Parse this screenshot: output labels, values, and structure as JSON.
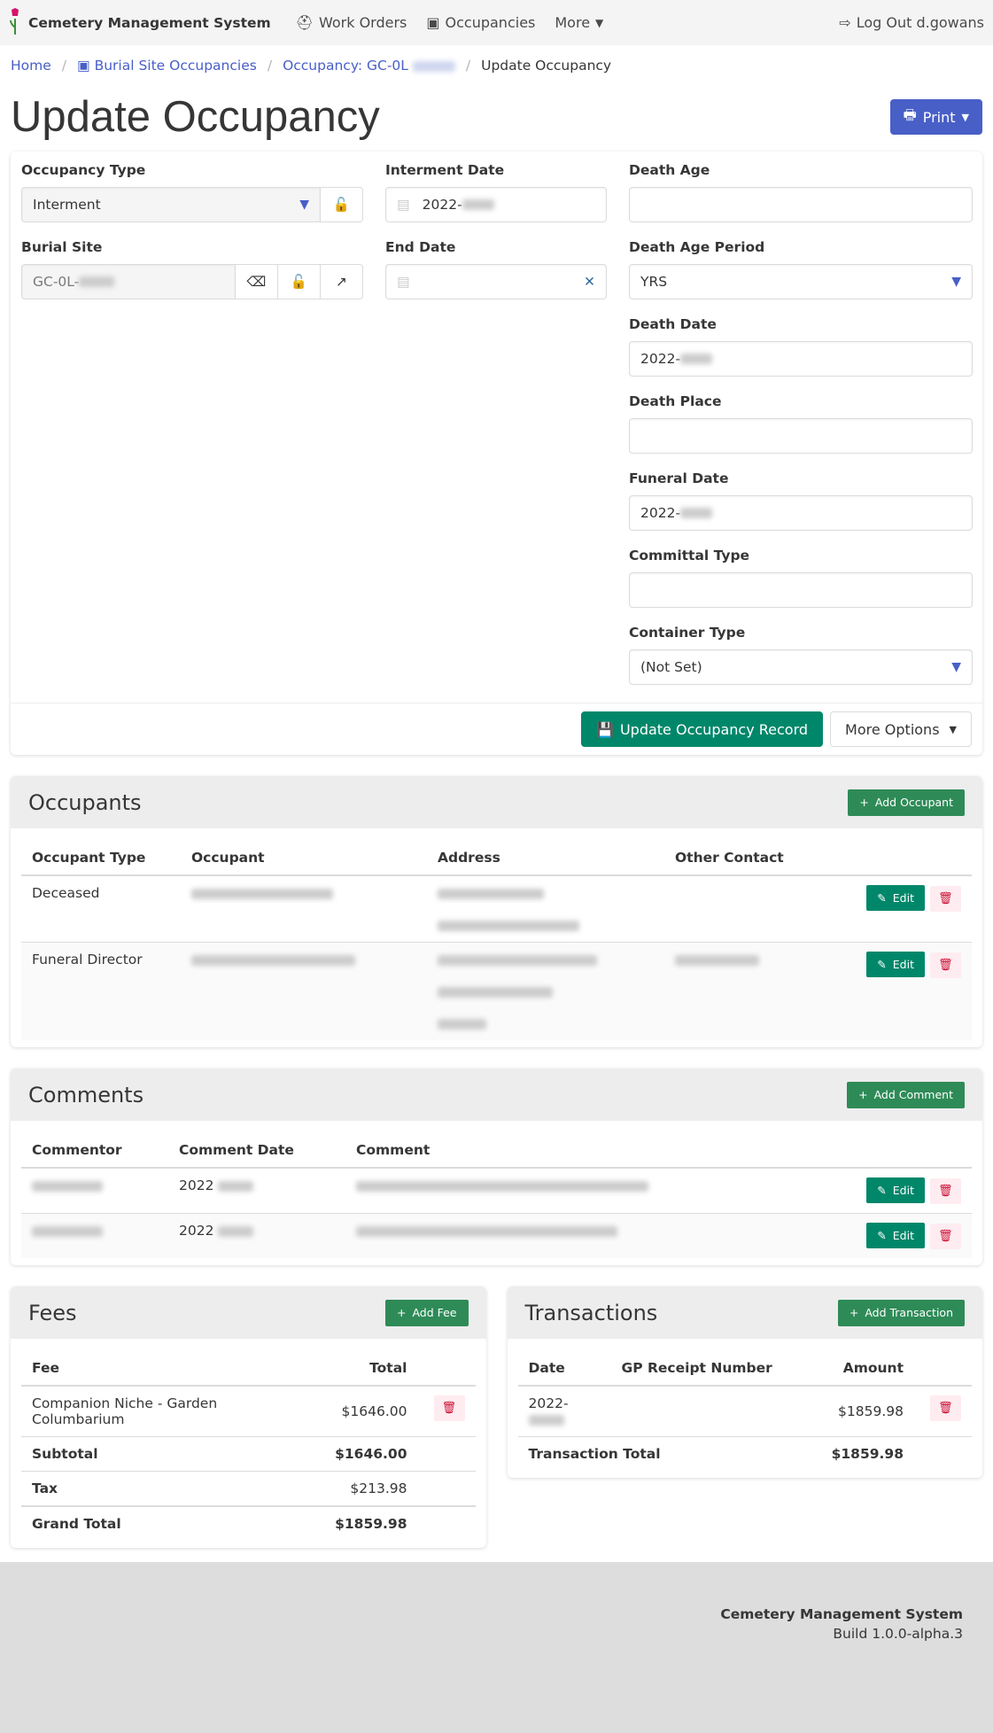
{
  "nav": {
    "brand": "Cemetery Management System",
    "work_orders": "Work Orders",
    "occupancies": "Occupancies",
    "more": "More",
    "logout": "Log Out d.gowans"
  },
  "breadcrumb": {
    "home": "Home",
    "burial_site_occupancies": "Burial Site Occupancies",
    "occupancy": "Occupancy: GC-0L",
    "current": "Update Occupancy"
  },
  "page": {
    "title": "Update Occupancy",
    "print": "Print"
  },
  "form": {
    "occupancy_type": {
      "label": "Occupancy Type",
      "value": "Interment"
    },
    "burial_site": {
      "label": "Burial Site",
      "value": "GC-0L-"
    },
    "interment_date": {
      "label": "Interment Date",
      "value": "2022-"
    },
    "end_date": {
      "label": "End Date",
      "value": ""
    },
    "death_age": {
      "label": "Death Age",
      "value": ""
    },
    "death_age_period": {
      "label": "Death Age Period",
      "value": "YRS"
    },
    "death_date": {
      "label": "Death Date",
      "value": "2022-"
    },
    "death_place": {
      "label": "Death Place",
      "value": ""
    },
    "funeral_date": {
      "label": "Funeral Date",
      "value": "2022-"
    },
    "committal_type": {
      "label": "Committal Type",
      "value": ""
    },
    "container_type": {
      "label": "Container Type",
      "value": "(Not Set)"
    },
    "update_button": "Update Occupancy Record",
    "more_options": "More Options"
  },
  "occupants": {
    "title": "Occupants",
    "add": "Add Occupant",
    "columns": [
      "Occupant Type",
      "Occupant",
      "Address",
      "Other Contact"
    ],
    "rows": [
      {
        "type": "Deceased"
      },
      {
        "type": "Funeral Director"
      }
    ],
    "edit": "Edit"
  },
  "comments": {
    "title": "Comments",
    "add": "Add Comment",
    "columns": [
      "Commentor",
      "Comment Date",
      "Comment"
    ],
    "rows": [
      {
        "date": "2022"
      },
      {
        "date": "2022"
      }
    ],
    "edit": "Edit"
  },
  "fees": {
    "title": "Fees",
    "add": "Add Fee",
    "columns": [
      "Fee",
      "Total"
    ],
    "rows": [
      {
        "fee": "Companion Niche - Garden Columbarium",
        "total": "$1646.00"
      }
    ],
    "subtotal_label": "Subtotal",
    "subtotal": "$1646.00",
    "tax_label": "Tax",
    "tax": "$213.98",
    "grand_total_label": "Grand Total",
    "grand_total": "$1859.98"
  },
  "transactions": {
    "title": "Transactions",
    "add": "Add Transaction",
    "columns": [
      "Date",
      "GP Receipt Number",
      "Amount"
    ],
    "rows": [
      {
        "date": "2022-",
        "receipt": "",
        "amount": "$1859.98"
      }
    ],
    "total_label": "Transaction Total",
    "total": "$1859.98"
  },
  "footer": {
    "name": "Cemetery Management System",
    "build": "Build 1.0.0-alpha.3"
  },
  "colors": {
    "primary": "#485fc7",
    "success": "#00876a",
    "add": "#2e8b57",
    "danger": "#cc0f35"
  }
}
